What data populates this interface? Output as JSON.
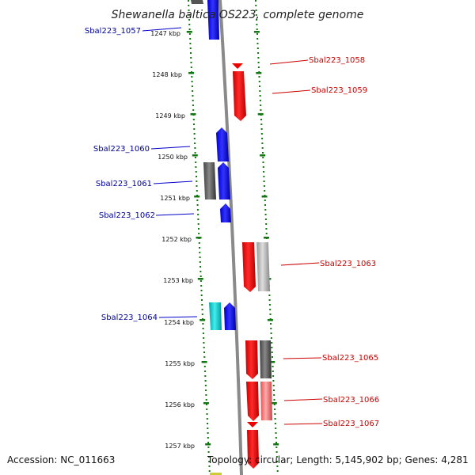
{
  "title": "Shewanella baltica OS223, complete genome",
  "footer": {
    "accession": "Accession: NC_011663",
    "topology": "Topology: circular; Length: 5,145,902 bp; Genes: 4,281"
  },
  "colors": {
    "forward_strand": "#0000dd",
    "reverse_strand": "#ee0000",
    "forward_label": "#000099",
    "reverse_label": "#cc0000",
    "ruler_ticks": "#117711",
    "genome_axis": "#888888"
  },
  "ruler": {
    "unit": "kbp",
    "ticks": [
      "1247 kbp",
      "1248 kbp",
      "1249 kbp",
      "1250 kbp",
      "1251 kbp",
      "1252 kbp",
      "1253 kbp",
      "1254 kbp",
      "1255 kbp",
      "1256 kbp",
      "1257 kbp"
    ]
  },
  "genes": [
    {
      "label": "Sbal223_1057",
      "strand": "forward",
      "color": "#0000dd"
    },
    {
      "label": "Sbal223_1058",
      "strand": "reverse",
      "color": "#ee0000"
    },
    {
      "label": "Sbal223_1059",
      "strand": "reverse",
      "color": "#ee0000"
    },
    {
      "label": "Sbal223_1060",
      "strand": "forward",
      "color": "#0000dd"
    },
    {
      "label": "Sbal223_1061",
      "strand": "forward",
      "color": "#0000dd"
    },
    {
      "label": "Sbal223_1062",
      "strand": "forward",
      "color": "#0000dd"
    },
    {
      "label": "Sbal223_1063",
      "strand": "reverse",
      "color": "#ee0000"
    },
    {
      "label": "Sbal223_1064",
      "strand": "forward",
      "color": "#0000dd"
    },
    {
      "label": "Sbal223_1065",
      "strand": "reverse",
      "color": "#ee0000"
    },
    {
      "label": "Sbal223_1066",
      "strand": "reverse",
      "color": "#ee0000"
    },
    {
      "label": "Sbal223_1067",
      "strand": "reverse",
      "color": "#ee0000"
    }
  ]
}
